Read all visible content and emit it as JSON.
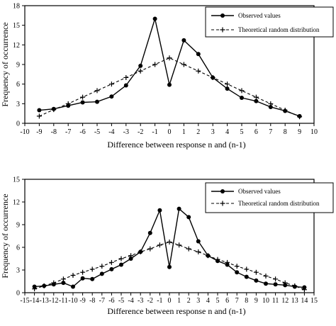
{
  "chart_data": [
    {
      "type": "line",
      "title": "",
      "xlabel": "Difference between response n and (n-1)",
      "ylabel": "Frequency of occurrence",
      "xlim": [
        -10,
        10
      ],
      "ylim": [
        0,
        18
      ],
      "xticks": [
        -10,
        -9,
        -8,
        -7,
        -6,
        -5,
        -4,
        -3,
        -2,
        -1,
        0,
        1,
        2,
        3,
        4,
        5,
        6,
        7,
        8,
        9,
        10
      ],
      "yticks": [
        0,
        3,
        6,
        9,
        12,
        15,
        18
      ],
      "grid": false,
      "legend_position": "top-right",
      "series": [
        {
          "name": "Observed values",
          "style": "solid-dots",
          "x": [
            -9,
            -8,
            -7,
            -6,
            -5,
            -4,
            -3,
            -2,
            -1,
            0,
            1,
            2,
            3,
            4,
            5,
            6,
            7,
            8,
            9
          ],
          "values": [
            2.0,
            2.2,
            2.7,
            3.2,
            3.3,
            4.1,
            5.8,
            8.8,
            16.0,
            5.9,
            12.7,
            10.6,
            7.0,
            5.3,
            3.9,
            3.4,
            2.5,
            1.9,
            1.1
          ]
        },
        {
          "name": "Theoretical random distribution",
          "style": "dashed-plus",
          "x": [
            -9,
            -8,
            -7,
            -6,
            -5,
            -4,
            -3,
            -2,
            -1,
            0,
            1,
            2,
            3,
            4,
            5,
            6,
            7,
            8,
            9
          ],
          "values": [
            1.1,
            2.1,
            3.0,
            4.0,
            5.0,
            6.0,
            7.0,
            8.0,
            9.0,
            10.0,
            9.0,
            8.0,
            7.0,
            6.0,
            5.0,
            4.0,
            3.0,
            2.0,
            1.0
          ]
        }
      ]
    },
    {
      "type": "line",
      "title": "",
      "xlabel": "Difference between response n and (n-1)",
      "ylabel": "Frequency of occurrence",
      "xlim": [
        -15,
        15
      ],
      "ylim": [
        0,
        15
      ],
      "xticks": [
        -15,
        -14,
        -13,
        -12,
        -11,
        -10,
        -9,
        -8,
        -7,
        -6,
        -5,
        -4,
        -3,
        -2,
        -1,
        0,
        1,
        2,
        3,
        4,
        5,
        6,
        7,
        8,
        9,
        10,
        11,
        12,
        13,
        14,
        15
      ],
      "yticks": [
        0,
        3,
        6,
        9,
        12,
        15
      ],
      "grid": false,
      "legend_position": "top-right",
      "series": [
        {
          "name": "Observed values",
          "style": "solid-dots",
          "x": [
            -14,
            -13,
            -12,
            -11,
            -10,
            -9,
            -8,
            -7,
            -6,
            -5,
            -4,
            -3,
            -2,
            -1,
            0,
            1,
            2,
            3,
            4,
            5,
            6,
            7,
            8,
            9,
            10,
            11,
            12,
            13,
            14
          ],
          "values": [
            0.8,
            0.9,
            1.1,
            1.3,
            0.8,
            1.9,
            1.8,
            2.5,
            3.1,
            3.7,
            4.5,
            5.4,
            7.9,
            10.9,
            3.4,
            11.1,
            10.0,
            6.8,
            4.9,
            4.2,
            3.7,
            2.7,
            2.1,
            1.6,
            1.2,
            1.1,
            1.0,
            0.8,
            0.7
          ]
        },
        {
          "name": "Theoretical random distribution",
          "style": "dashed-plus",
          "x": [
            -14,
            -13,
            -12,
            -11,
            -10,
            -9,
            -8,
            -7,
            -6,
            -5,
            -4,
            -3,
            -2,
            -1,
            0,
            1,
            2,
            3,
            4,
            5,
            6,
            7,
            8,
            9,
            10,
            11,
            12,
            13,
            14
          ],
          "values": [
            0.5,
            0.9,
            1.3,
            1.8,
            2.3,
            2.7,
            3.1,
            3.5,
            4.0,
            4.5,
            4.9,
            5.4,
            5.8,
            6.3,
            6.7,
            6.3,
            5.8,
            5.4,
            4.9,
            4.4,
            4.0,
            3.5,
            3.1,
            2.7,
            2.2,
            1.8,
            1.3,
            0.9,
            0.4
          ]
        }
      ]
    }
  ]
}
